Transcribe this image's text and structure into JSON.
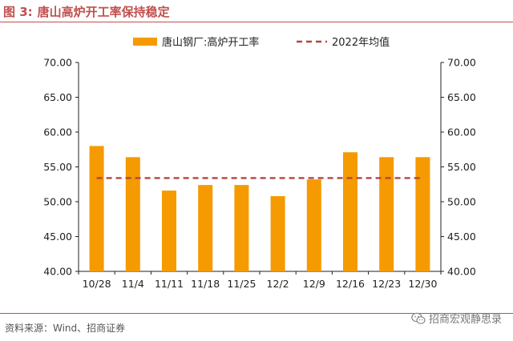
{
  "figure": {
    "label": "图 3:",
    "title": "唐山高炉开工率保持稳定"
  },
  "source_note": "资料来源：Wind、招商证券",
  "watermark": {
    "text": "招商宏观静思录",
    "icon": "wechat-icon"
  },
  "colors": {
    "bar": "#f59a00",
    "avg_line": "#b5433f",
    "accent": "#c0504d",
    "axis": "#222222"
  },
  "chart_data": {
    "type": "bar",
    "title": "",
    "xlabel": "",
    "ylabel": "",
    "categories": [
      "10/28",
      "11/4",
      "11/11",
      "11/18",
      "11/25",
      "12/2",
      "12/9",
      "12/16",
      "12/23",
      "12/30"
    ],
    "series": [
      {
        "name": "唐山钢厂:高炉开工率",
        "type": "bar",
        "values": [
          58.0,
          56.4,
          51.6,
          52.4,
          52.4,
          50.8,
          53.2,
          57.1,
          56.4,
          56.4
        ]
      },
      {
        "name": "2022年均值",
        "type": "line",
        "style": "dashed",
        "values": [
          53.4,
          53.4,
          53.4,
          53.4,
          53.4,
          53.4,
          53.4,
          53.4,
          53.4,
          53.4
        ]
      }
    ],
    "ylim": [
      40,
      70
    ],
    "yticks": [
      "40.00",
      "45.00",
      "50.00",
      "55.00",
      "60.00",
      "65.00",
      "70.00"
    ],
    "y2ticks": [
      "40.00",
      "45.00",
      "50.00",
      "55.00",
      "60.00",
      "65.00",
      "70.00"
    ],
    "grid": false,
    "legend_position": "top"
  }
}
